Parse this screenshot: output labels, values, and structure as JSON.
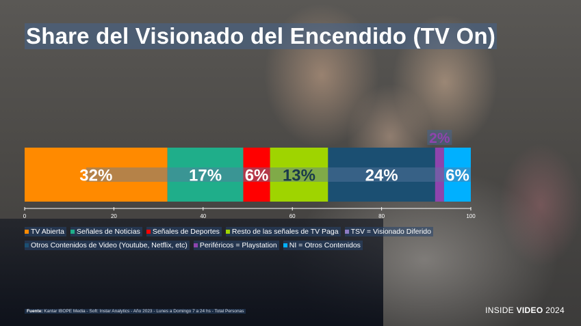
{
  "title": "Share del Visionado del Encendido (TV On)",
  "chart_data": {
    "type": "bar",
    "orientation": "horizontal-stacked",
    "title": "Share del Visionado del Encendido (TV On)",
    "xlim": [
      0,
      100
    ],
    "x_ticks": [
      0,
      20,
      40,
      60,
      80,
      100
    ],
    "series": [
      {
        "name": "TV Abierta",
        "value": 32,
        "label": "32%",
        "color": "#ff8a00"
      },
      {
        "name": "Señales de Noticias",
        "value": 17,
        "label": "17%",
        "color": "#1fae8a"
      },
      {
        "name": "Señales de Deportes",
        "value": 6,
        "label": "6%",
        "color": "#ff0000"
      },
      {
        "name": "Resto de las señales de TV Paga",
        "value": 13,
        "label": "13%",
        "color": "#9fd400"
      },
      {
        "name": "TSV = Visionado Diferido",
        "value": 0,
        "label": "",
        "color": "#8e7cc3"
      },
      {
        "name": "Otros Contenidos de Video (Youtube, Netflix, etc)",
        "value": 24,
        "label": "24%",
        "color": "#1b4f72"
      },
      {
        "name": "Periféricos = Playstation",
        "value": 2,
        "label": "2%",
        "color": "#8e44ad"
      },
      {
        "name": "NI = Otros Contenidos",
        "value": 6,
        "label": "6%",
        "color": "#00b0ff"
      }
    ],
    "legend_position": "bottom",
    "grid": false
  },
  "legend_rows": [
    [
      {
        "label": "TV Abierta",
        "color": "#ff8a00"
      },
      {
        "label": "Señales de Noticias",
        "color": "#1fae8a"
      },
      {
        "label": "Señales de Deportes",
        "color": "#ff0000"
      },
      {
        "label": "Resto de las señales de TV Paga",
        "color": "#9fd400"
      },
      {
        "label": "TSV = Visionado Diferido",
        "color": "#8e7cc3"
      }
    ],
    [
      {
        "label": "Otros Contenidos de Video (Youtube, Netflix, etc)",
        "color": "#1b4f72"
      },
      {
        "label": "Periféricos = Playstation",
        "color": "#8e44ad"
      },
      {
        "label": "NI = Otros Contenidos",
        "color": "#00b0ff"
      }
    ]
  ],
  "footer": {
    "source_label": "Fuente:",
    "source_text": "Kantar IBOPE Media - Soft: Instar Analytics - Año 2023 - Lunes a Domingo 7 a 24 hs - Total Personas"
  },
  "brand": {
    "prefix": "INSIDE",
    "strong": "VIDEO",
    "year": "2024"
  },
  "colors": {
    "text": "#ffffff",
    "label_box": "rgba(70,100,140,0.55)"
  }
}
